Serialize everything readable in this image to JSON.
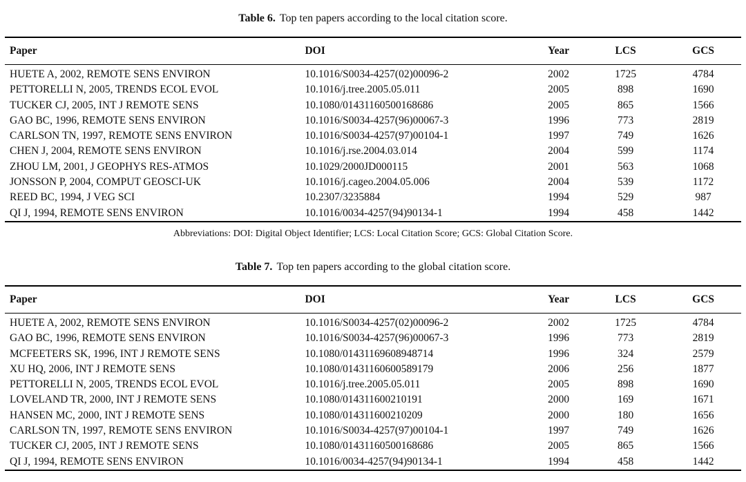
{
  "page": {
    "background_color": "#ffffff",
    "text_color": "#111111",
    "rule_color": "#000000"
  },
  "tables": [
    {
      "caption_label": "Table 6.",
      "caption_text": "Top ten papers according to the local citation score.",
      "columns": [
        "Paper",
        "DOI",
        "Year",
        "LCS",
        "GCS"
      ],
      "rows": [
        [
          "HUETE A, 2002, REMOTE SENS ENVIRON",
          "10.1016/S0034-4257(02)00096-2",
          "2002",
          "1725",
          "4784"
        ],
        [
          "PETTORELLI N, 2005, TRENDS ECOL EVOL",
          "10.1016/j.tree.2005.05.011",
          "2005",
          "898",
          "1690"
        ],
        [
          "TUCKER CJ, 2005, INT J REMOTE SENS",
          "10.1080/01431160500168686",
          "2005",
          "865",
          "1566"
        ],
        [
          "GAO BC, 1996, REMOTE SENS ENVIRON",
          "10.1016/S0034-4257(96)00067-3",
          "1996",
          "773",
          "2819"
        ],
        [
          "CARLSON TN, 1997, REMOTE SENS ENVIRON",
          "10.1016/S0034-4257(97)00104-1",
          "1997",
          "749",
          "1626"
        ],
        [
          "CHEN J, 2004, REMOTE SENS ENVIRON",
          "10.1016/j.rse.2004.03.014",
          "2004",
          "599",
          "1174"
        ],
        [
          "ZHOU LM, 2001, J GEOPHYS RES-ATMOS",
          "10.1029/2000JD000115",
          "2001",
          "563",
          "1068"
        ],
        [
          "JONSSON P, 2004, COMPUT GEOSCI-UK",
          "10.1016/j.cageo.2004.05.006",
          "2004",
          "539",
          "1172"
        ],
        [
          "REED BC, 1994, J VEG SCI",
          "10.2307/3235884",
          "1994",
          "529",
          "987"
        ],
        [
          "QI J, 1994, REMOTE SENS ENVIRON",
          "10.1016/0034-4257(94)90134-1",
          "1994",
          "458",
          "1442"
        ]
      ],
      "footnote": "Abbreviations: DOI: Digital Object Identifier; LCS: Local Citation Score; GCS: Global Citation Score."
    },
    {
      "caption_label": "Table 7.",
      "caption_text": "Top ten papers according to the global citation score.",
      "columns": [
        "Paper",
        "DOI",
        "Year",
        "LCS",
        "GCS"
      ],
      "rows": [
        [
          "HUETE A, 2002, REMOTE SENS ENVIRON",
          "10.1016/S0034-4257(02)00096-2",
          "2002",
          "1725",
          "4784"
        ],
        [
          "GAO BC, 1996, REMOTE SENS ENVIRON",
          "10.1016/S0034-4257(96)00067-3",
          "1996",
          "773",
          "2819"
        ],
        [
          "MCFEETERS SK, 1996, INT J REMOTE SENS",
          "10.1080/01431169608948714",
          "1996",
          "324",
          "2579"
        ],
        [
          "XU HQ, 2006, INT J REMOTE SENS",
          "10.1080/01431160600589179",
          "2006",
          "256",
          "1877"
        ],
        [
          "PETTORELLI N, 2005, TRENDS ECOL EVOL",
          "10.1016/j.tree.2005.05.011",
          "2005",
          "898",
          "1690"
        ],
        [
          "LOVELAND TR, 2000, INT J REMOTE SENS",
          "10.1080/014311600210191",
          "2000",
          "169",
          "1671"
        ],
        [
          "HANSEN MC, 2000, INT J REMOTE SENS",
          "10.1080/014311600210209",
          "2000",
          "180",
          "1656"
        ],
        [
          "CARLSON TN, 1997, REMOTE SENS ENVIRON",
          "10.1016/S0034-4257(97)00104-1",
          "1997",
          "749",
          "1626"
        ],
        [
          "TUCKER CJ, 2005, INT J REMOTE SENS",
          "10.1080/01431160500168686",
          "2005",
          "865",
          "1566"
        ],
        [
          "QI J, 1994, REMOTE SENS ENVIRON",
          "10.1016/0034-4257(94)90134-1",
          "1994",
          "458",
          "1442"
        ]
      ]
    }
  ]
}
